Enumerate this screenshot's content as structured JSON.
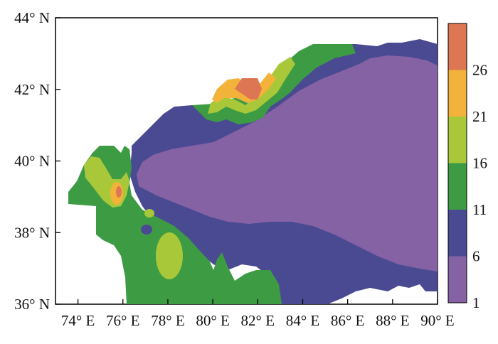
{
  "map": {
    "x_axis": {
      "ticks": [
        {
          "value": 74,
          "label": "74° E"
        },
        {
          "value": 76,
          "label": "76° E"
        },
        {
          "value": 78,
          "label": "78° E"
        },
        {
          "value": 80,
          "label": "80° E"
        },
        {
          "value": 82,
          "label": "82° E"
        },
        {
          "value": 84,
          "label": "84° E"
        },
        {
          "value": 86,
          "label": "86° E"
        },
        {
          "value": 88,
          "label": "88° E"
        },
        {
          "value": 90,
          "label": "90° E"
        }
      ],
      "range": [
        73,
        90
      ]
    },
    "y_axis": {
      "ticks": [
        {
          "value": 36,
          "label": "36° N"
        },
        {
          "value": 38,
          "label": "38° N"
        },
        {
          "value": 40,
          "label": "40° N"
        },
        {
          "value": 42,
          "label": "42° N"
        },
        {
          "value": 44,
          "label": "44° N"
        }
      ],
      "range": [
        36,
        44
      ]
    },
    "colorbar": {
      "labels": [
        "1",
        "6",
        "11",
        "16",
        "21",
        "26"
      ],
      "bins": [
        {
          "from": 1,
          "to": 6,
          "color": "#8462a3"
        },
        {
          "from": 6,
          "to": 11,
          "color": "#4a4a93"
        },
        {
          "from": 11,
          "to": 16,
          "color": "#3d9b44"
        },
        {
          "from": 16,
          "to": 21,
          "color": "#a8c83a"
        },
        {
          "from": 21,
          "to": 26,
          "color": "#f3b23a"
        },
        {
          "from": 26,
          "to": 31,
          "color": "#dc7653"
        }
      ]
    }
  }
}
